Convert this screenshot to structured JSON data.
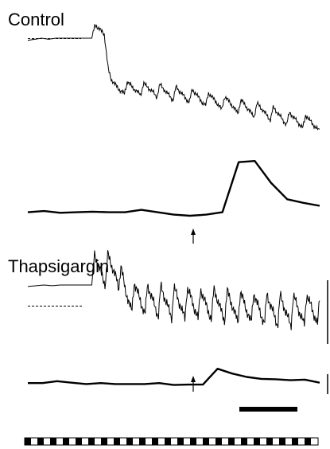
{
  "chart_data": [
    {
      "type": "line",
      "title": "Control",
      "series": [
        {
          "values": [
            0.98,
            0.99,
            1.0,
            0.99,
            1.0,
            1.0,
            1.0,
            1.0,
            1.0,
            1.0,
            1.0,
            1.0,
            0.48,
            0.46,
            0.47,
            0.45,
            0.46,
            0.44,
            0.45,
            0.43,
            0.42,
            0.41,
            0.4,
            0.39,
            0.38,
            0.36,
            0.35,
            0.34,
            0.32,
            0.31,
            0.29,
            0.28,
            0.26,
            0.25,
            0.24,
            0.22,
            0.2,
            0.18,
            0.16,
            0.15,
            0.14,
            0.12,
            0.12
          ]
        },
        {
          "values": [
            0.1,
            0.12,
            0.09,
            0.1,
            0.11,
            0.1,
            0.1,
            0.14,
            0.1,
            0.06,
            0.04,
            0.06,
            0.1,
            0.95,
            0.97,
            0.6,
            0.32,
            0.26,
            0.21
          ]
        }
      ]
    },
    {
      "type": "line",
      "title": "Thapsigargin",
      "series": [
        {
          "values": [
            0.98,
            0.99,
            1.0,
            0.99,
            1.0,
            1.0,
            1.0,
            1.0,
            1.0,
            1.0,
            1.0,
            1.0,
            0.68,
            0.62,
            0.6,
            0.58,
            0.57,
            0.56,
            0.55,
            0.54,
            0.55,
            0.53,
            0.52,
            0.53,
            0.51,
            0.5,
            0.49,
            0.48,
            0.47,
            0.46,
            0.45,
            0.44,
            0.43,
            0.44,
            0.45,
            0.46,
            0.46
          ]
        },
        {
          "values": [
            0.2,
            0.2,
            0.3,
            0.22,
            0.15,
            0.2,
            0.15,
            0.15,
            0.15,
            0.2,
            0.1,
            0.12,
            0.12,
            0.95,
            0.7,
            0.52,
            0.42,
            0.4,
            0.35,
            0.38,
            0.22
          ]
        }
      ]
    }
  ]
}
